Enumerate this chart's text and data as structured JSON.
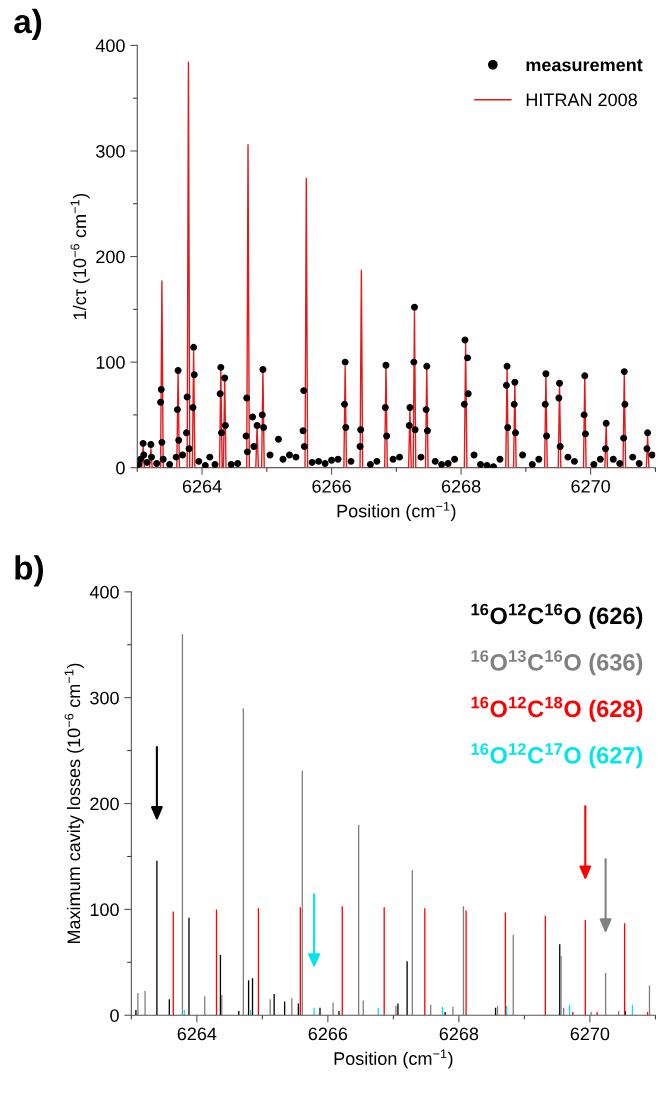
{
  "chart_data": [
    {
      "type": "line",
      "title": "a)",
      "xlabel": "Position (cm$^{−1}$)",
      "ylabel": "1/cτ (10$^{−6}$ cm$^{−1}$)",
      "xlim": [
        6263,
        6271
      ],
      "ylim": [
        0,
        400
      ],
      "xticks": [
        {
          "value": 6263,
          "label": null
        },
        6264,
        {
          "value": 6265,
          "label": null
        },
        6266,
        {
          "value": 6267,
          "label": null
        },
        6268,
        {
          "value": 6269,
          "label": null
        },
        6270,
        {
          "value": 6271,
          "label": null
        }
      ],
      "yticks": [
        0,
        {
          "value": 50,
          "label": null
        },
        100,
        {
          "value": 150,
          "label": null
        },
        200,
        {
          "value": 250,
          "label": null
        },
        300,
        {
          "value": 350,
          "label": null
        },
        400
      ],
      "grid": false,
      "legend": "top right",
      "series": [
        {
          "name": "measurement",
          "type": "scatter",
          "marker": "circle",
          "color": "#000000",
          "x": [
            6263.02,
            6263.05,
            6263.09,
            6263.1,
            6263.15,
            6263.21,
            6263.22,
            6263.3,
            6263.36,
            6263.37,
            6263.38,
            6263.4,
            6263.5,
            6263.6,
            6263.62,
            6263.63,
            6263.64,
            6263.7,
            6263.76,
            6263.77,
            6263.8,
            6263.86,
            6263.87,
            6263.88,
            6263.95,
            6264.05,
            6264.12,
            6264.2,
            6264.28,
            6264.29,
            6264.3,
            6264.35,
            6264.36,
            6264.45,
            6264.55,
            6264.68,
            6264.69,
            6264.7,
            6264.78,
            6264.8,
            6264.85,
            6264.93,
            6264.94,
            6264.95,
            6265.05,
            6265.18,
            6265.25,
            6265.35,
            6265.45,
            6265.56,
            6265.57,
            6265.58,
            6265.7,
            6265.8,
            6265.9,
            6266.0,
            6266.1,
            6266.2,
            6266.21,
            6266.22,
            6266.3,
            6266.44,
            6266.45,
            6266.6,
            6266.7,
            6266.83,
            6266.84,
            6266.85,
            6266.95,
            6267.05,
            6267.2,
            6267.21,
            6267.27,
            6267.28,
            6267.29,
            6267.38,
            6267.46,
            6267.47,
            6267.48,
            6267.6,
            6267.7,
            6267.8,
            6267.9,
            6268.05,
            6268.06,
            6268.1,
            6268.11,
            6268.2,
            6268.3,
            6268.4,
            6268.5,
            6268.6,
            6268.7,
            6268.71,
            6268.72,
            6268.82,
            6268.83,
            6268.84,
            6268.95,
            6269.1,
            6269.2,
            6269.3,
            6269.31,
            6269.32,
            6269.51,
            6269.52,
            6269.53,
            6269.65,
            6269.75,
            6269.9,
            6269.91,
            6269.92,
            6270.05,
            6270.15,
            6270.23,
            6270.24,
            6270.35,
            6270.45,
            6270.51,
            6270.52,
            6270.53,
            6270.65,
            6270.75,
            6270.87,
            6270.88,
            6270.95
          ],
          "values": [
            3,
            8,
            23,
            12,
            5,
            22,
            10,
            4,
            62,
            74,
            24,
            8,
            3,
            10,
            55,
            92,
            26,
            12,
            33,
            67,
            18,
            57,
            114,
            88,
            6,
            2,
            10,
            3,
            70,
            95,
            33,
            85,
            40,
            3,
            4,
            30,
            66,
            15,
            48,
            20,
            40,
            50,
            93,
            38,
            12,
            27,
            8,
            12,
            10,
            35,
            73,
            20,
            5,
            6,
            4,
            7,
            8,
            60,
            100,
            38,
            6,
            20,
            36,
            3,
            6,
            57,
            97,
            30,
            8,
            10,
            40,
            57,
            100,
            152,
            36,
            10,
            55,
            96,
            35,
            6,
            3,
            4,
            8,
            60,
            121,
            104,
            70,
            12,
            3,
            2,
            1,
            8,
            78,
            96,
            38,
            60,
            81,
            33,
            12,
            3,
            8,
            60,
            89,
            30,
            66,
            80,
            20,
            10,
            6,
            50,
            87,
            32,
            3,
            8,
            18,
            42,
            8,
            4,
            28,
            91,
            60,
            10,
            4,
            18,
            33,
            12
          ]
        },
        {
          "name": "HITRAN 2008",
          "type": "line",
          "color": "#e31a1c",
          "x": [
            6263.07,
            6263.09,
            6263.11,
            6263.19,
            6263.21,
            6263.23,
            6263.36,
            6263.38,
            6263.4,
            6263.61,
            6263.63,
            6263.65,
            6263.77,
            6263.79,
            6263.81,
            6263.85,
            6263.87,
            6263.89,
            6264.27,
            6264.29,
            6264.31,
            6264.33,
            6264.35,
            6264.37,
            6264.69,
            6264.71,
            6264.73,
            6264.83,
            6264.85,
            6264.87,
            6264.92,
            6264.94,
            6264.96,
            6265.59,
            6265.61,
            6265.63,
            6266.19,
            6266.21,
            6266.23,
            6266.44,
            6266.46,
            6266.48,
            6266.82,
            6266.84,
            6266.86,
            6267.19,
            6267.21,
            6267.23,
            6267.26,
            6267.28,
            6267.3,
            6267.45,
            6267.47,
            6267.49,
            6268.05,
            6268.07,
            6268.09,
            6268.69,
            6268.71,
            6268.73,
            6268.81,
            6268.83,
            6268.85,
            6269.29,
            6269.31,
            6269.33,
            6269.5,
            6269.52,
            6269.54,
            6269.89,
            6269.91,
            6269.93,
            6270.22,
            6270.24,
            6270.26,
            6270.5,
            6270.52,
            6270.54,
            6270.86,
            6270.88,
            6270.9
          ],
          "values": [
            0,
            20,
            0,
            0,
            18,
            0,
            0,
            177,
            0,
            0,
            90,
            0,
            0,
            384,
            0,
            0,
            110,
            0,
            0,
            93,
            0,
            0,
            85,
            0,
            0,
            306,
            0,
            0,
            40,
            0,
            0,
            92,
            0,
            0,
            274,
            0,
            0,
            96,
            0,
            0,
            187,
            0,
            0,
            97,
            0,
            0,
            55,
            0,
            0,
            148,
            0,
            0,
            95,
            0,
            0,
            118,
            0,
            0,
            95,
            0,
            0,
            80,
            0,
            0,
            88,
            0,
            0,
            78,
            0,
            0,
            87,
            0,
            0,
            40,
            0,
            0,
            90,
            0,
            0,
            30,
            0
          ]
        }
      ]
    },
    {
      "type": "bar",
      "title": "b)",
      "xlabel": "Position (cm$^{−1}$)",
      "ylabel": "Maximum cavity losses (10$^{−6}$ cm$^{−1}$)",
      "xlim": [
        6263,
        6271
      ],
      "ylim": [
        0,
        400
      ],
      "xticks": [
        {
          "value": 6263,
          "label": null
        },
        6264,
        {
          "value": 6265,
          "label": null
        },
        6266,
        {
          "value": 6267,
          "label": null
        },
        6268,
        {
          "value": 6269,
          "label": null
        },
        6270,
        {
          "value": 6271,
          "label": null
        }
      ],
      "yticks": [
        0,
        {
          "value": 50,
          "label": null
        },
        100,
        {
          "value": 150,
          "label": null
        },
        200,
        {
          "value": 250,
          "label": null
        },
        300,
        {
          "value": 350,
          "label": null
        },
        400
      ],
      "grid": false,
      "legend": "top right",
      "series": [
        {
          "name": "$^{16}$O$^{12}$C$^{16}$O (626)",
          "color": "#000000",
          "x": [
            6263.07,
            6263.39,
            6263.58,
            6263.88,
            6264.36,
            6264.64,
            6264.79,
            6264.85,
            6265.18,
            6265.34,
            6265.55,
            6265.88,
            6266.17,
            6267.07,
            6267.21,
            6267.79,
            6268.56,
            6269.54,
            6270.54
          ],
          "values": [
            5,
            146,
            15,
            92,
            57,
            4,
            33,
            35,
            20,
            13,
            11,
            7,
            4,
            11,
            51,
            3,
            7,
            67,
            4
          ]
        },
        {
          "name": "$^{16}$O$^{13}$C$^{16}$O (636)",
          "color": "#808080",
          "x": [
            6263.1,
            6263.21,
            6263.78,
            6264.12,
            6264.38,
            6264.71,
            6265.12,
            6265.45,
            6265.61,
            6266.08,
            6266.47,
            6266.54,
            6267.04,
            6267.29,
            6267.57,
            6267.91,
            6268.07,
            6268.59,
            6268.83,
            6269.56,
            6269.6,
            6270.02,
            6270.24,
            6270.44,
            6270.91
          ],
          "values": [
            21,
            23,
            360,
            18,
            19,
            290,
            15,
            16,
            231,
            12,
            180,
            14,
            9,
            137,
            10,
            8,
            103,
            9,
            76,
            56,
            7,
            3,
            40,
            4,
            28
          ]
        },
        {
          "name": "$^{16}$O$^{12}$C$^{18}$O (628)",
          "color": "#ff0000",
          "x": [
            6263.64,
            6264.3,
            6264.94,
            6265.58,
            6266.22,
            6266.86,
            6267.48,
            6268.11,
            6268.71,
            6269.32,
            6269.74,
            6269.93,
            6270.11,
            6270.53,
            6270.88
          ],
          "values": [
            98,
            100,
            101,
            102,
            103,
            102,
            101,
            99,
            97,
            94,
            3,
            90,
            3,
            87,
            3
          ]
        },
        {
          "name": "$^{16}$O$^{12}$C$^{17}$O (627)",
          "color": "#00e5ee",
          "x": [
            6263.81,
            6264.82,
            6265.79,
            6266.77,
            6267.75,
            6268.73,
            6269.69,
            6270.65
          ],
          "values": [
            5,
            5,
            7,
            7,
            8,
            9,
            10,
            10
          ]
        }
      ]
    }
  ]
}
